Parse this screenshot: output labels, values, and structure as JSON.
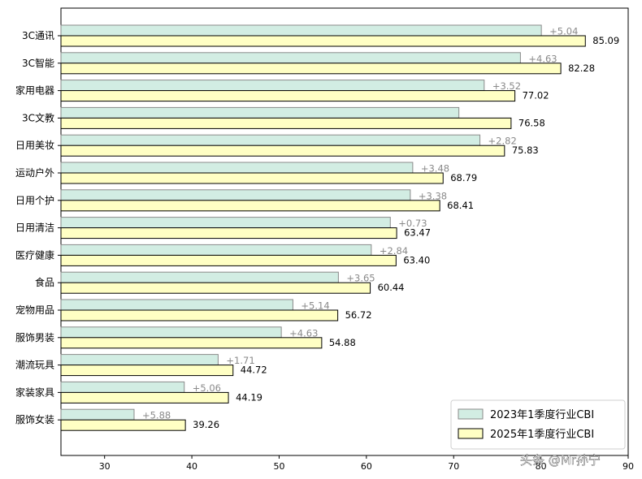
{
  "chart_data": {
    "type": "bar",
    "orientation": "horizontal",
    "categories": [
      "3C通讯",
      "3C智能",
      "家用电器",
      "3C文教",
      "日用美妆",
      "运动户外",
      "日用个护",
      "日用清洁",
      "医疗健康",
      "食品",
      "宠物用品",
      "服饰男装",
      "潮流玩具",
      "家装家具",
      "服饰女装"
    ],
    "series": [
      {
        "name": "2023年1季度行业CBI",
        "values": [
          80.05,
          77.65,
          73.5,
          70.6,
          73.01,
          65.31,
          65.03,
          62.74,
          60.56,
          56.79,
          51.58,
          50.25,
          43.01,
          39.13,
          33.38
        ],
        "labels": [
          "+5.04",
          "+4.63",
          "+3.52",
          "",
          "+2.82",
          "+3.48",
          "+3.38",
          "+0.73",
          "+2.84",
          "+3.65",
          "+5.14",
          "+4.63",
          "+1.71",
          "+5.06",
          "+5.88"
        ],
        "fill": "#d2ede3",
        "stroke": "#8a8a8a"
      },
      {
        "name": "2025年1季度行业CBI",
        "values": [
          85.09,
          82.28,
          77.02,
          76.58,
          75.83,
          68.79,
          68.41,
          63.47,
          63.4,
          60.44,
          56.72,
          54.88,
          44.72,
          44.19,
          39.26
        ],
        "labels": [
          "85.09",
          "82.28",
          "77.02",
          "76.58",
          "75.83",
          "68.79",
          "68.41",
          "63.47",
          "63.40",
          "60.44",
          "56.72",
          "54.88",
          "44.72",
          "44.19",
          "39.26"
        ],
        "fill": "#ffffc4",
        "stroke": "#000000"
      }
    ],
    "xlim": [
      25,
      90
    ],
    "xticks": [
      "30",
      "40",
      "50",
      "60",
      "70",
      "80",
      "90"
    ],
    "grid": false,
    "legend_position": "bottom-right",
    "title": "",
    "xlabel": "",
    "ylabel": ""
  },
  "watermark": "头条 @Mr孙宁"
}
